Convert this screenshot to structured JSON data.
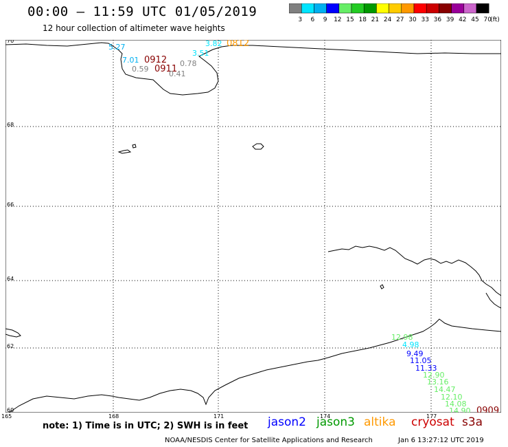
{
  "header": {
    "title": "00:00 – 11:59 UTC 01/05/2019",
    "subtitle": "12 hour collection of altimeter wave heights"
  },
  "colorbar": {
    "ticks": [
      "3",
      "6",
      "9",
      "12",
      "15",
      "18",
      "21",
      "24",
      "27",
      "30",
      "33",
      "36",
      "39",
      "42",
      "45",
      "70"
    ],
    "unit": "(ft)",
    "colors": [
      "#808080",
      "#00e5ff",
      "#00b0f0",
      "#0000ff",
      "#66ee66",
      "#22cc22",
      "#009900",
      "#ffff00",
      "#ffcc00",
      "#ff9900",
      "#ff0000",
      "#cc0000",
      "#880000",
      "#990099",
      "#cc66cc",
      "#000000"
    ]
  },
  "axes": {
    "lat_labels": [
      "70",
      "68",
      "66",
      "64",
      "62",
      "60"
    ],
    "lon_labels": [
      "165",
      "168",
      "171",
      "174",
      "177"
    ]
  },
  "observations": {
    "top_group": [
      {
        "text": "5.27",
        "color": "#00b0f0"
      },
      {
        "text": "7.01",
        "color": "#00b0f0"
      },
      {
        "text": "0912",
        "color": "#880000"
      },
      {
        "text": "0.59",
        "color": "#808080"
      },
      {
        "text": "0911",
        "color": "#880000"
      },
      {
        "text": "0.41",
        "color": "#808080"
      },
      {
        "text": "0.78",
        "color": "#808080"
      },
      {
        "text": "3.51",
        "color": "#00e5ff"
      },
      {
        "text": "3.82",
        "color": "#00e5ff"
      },
      {
        "text": "0812",
        "color": "#ff9900"
      }
    ],
    "bottom_group": [
      {
        "text": "12.98",
        "color": "#66ee66"
      },
      {
        "text": "4.98",
        "color": "#00e5ff"
      },
      {
        "text": "9.49",
        "color": "#0000ff"
      },
      {
        "text": "11.05",
        "color": "#0000ff"
      },
      {
        "text": "11.33",
        "color": "#0000ff"
      },
      {
        "text": "12.90",
        "color": "#66ee66"
      },
      {
        "text": "13.16",
        "color": "#66ee66"
      },
      {
        "text": "14.47",
        "color": "#66ee66"
      },
      {
        "text": "12.10",
        "color": "#66ee66"
      },
      {
        "text": "14.08",
        "color": "#66ee66"
      },
      {
        "text": "14.90",
        "color": "#66ee66"
      },
      {
        "text": "0909",
        "color": "#880000"
      }
    ]
  },
  "footer": {
    "note": "note: 1) Time is in UTC; 2) SWH is in feet",
    "satellites": [
      {
        "name": "jason2",
        "color": "#0000ff"
      },
      {
        "name": "jason3",
        "color": "#009900"
      },
      {
        "name": "altika",
        "color": "#ff9900"
      },
      {
        "name": "cryosat",
        "color": "#cc0000"
      },
      {
        "name": "s3a",
        "color": "#880000"
      }
    ],
    "credit": "NOAA/NESDIS Center for Satellite Applications and Research",
    "generated": "Jan  6 13:27:12 UTC 2019"
  }
}
